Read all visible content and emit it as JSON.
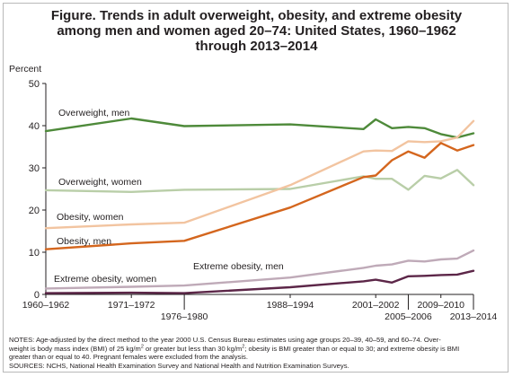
{
  "title_lines": [
    "Figure. Trends in adult overweight, obesity, and extreme obesity",
    "among men and women aged 20–74: United States, 1960–1962",
    "through 2013–2014"
  ],
  "chart_data": {
    "type": "line",
    "ylabel": "Percent",
    "xlabel": "",
    "ylim": [
      0,
      50
    ],
    "yticks": [
      0,
      10,
      20,
      30,
      40,
      50
    ],
    "grid": false,
    "x_tick_labels": [
      {
        "label": "1960–1962",
        "x": 1961,
        "row": 1
      },
      {
        "label": "1971–1972",
        "x": 1971.5,
        "row": 1
      },
      {
        "label": "1976–1980",
        "x": 1978,
        "row": 2
      },
      {
        "label": "1988–1994",
        "x": 1991,
        "row": 1
      },
      {
        "label": "2001–2002",
        "x": 2001.5,
        "row": 1
      },
      {
        "label": "2005–2006",
        "x": 2005.5,
        "row": 2
      },
      {
        "label": "2009–2010",
        "x": 2009.5,
        "row": 1
      },
      {
        "label": "2013–2014",
        "x": 2013.5,
        "row": 2
      }
    ],
    "x": [
      1961,
      1971.5,
      1978,
      1991,
      2000,
      2001.5,
      2003.5,
      2005.5,
      2007.5,
      2009.5,
      2011.5,
      2013.5
    ],
    "series": [
      {
        "name": "Overweight, men",
        "color": "#4e8a3a",
        "values": [
          38.7,
          41.7,
          39.9,
          40.3,
          39.2,
          41.5,
          39.4,
          39.7,
          39.4,
          38.0,
          37.2,
          38.2
        ]
      },
      {
        "name": "Overweight, women",
        "color": "#b9cea8",
        "values": [
          24.7,
          24.3,
          24.8,
          25.0,
          28.0,
          27.4,
          27.4,
          24.8,
          28.1,
          27.5,
          29.5,
          25.9
        ]
      },
      {
        "name": "Obesity, women",
        "color": "#f2c4a0",
        "values": [
          15.7,
          16.6,
          17.0,
          25.9,
          33.9,
          34.1,
          34.0,
          36.3,
          36.1,
          36.3,
          37.2,
          41.1
        ]
      },
      {
        "name": "Obesity, men",
        "color": "#d4661e",
        "values": [
          10.7,
          12.1,
          12.7,
          20.6,
          27.8,
          28.2,
          31.8,
          33.9,
          32.4,
          35.9,
          34.1,
          35.4
        ]
      },
      {
        "name": "Extreme obesity, women",
        "color": "#bfaab8",
        "values": [
          1.4,
          1.8,
          2.1,
          4.0,
          6.3,
          6.8,
          7.1,
          8.0,
          7.8,
          8.3,
          8.5,
          10.4
        ]
      },
      {
        "name": "Extreme obesity, men",
        "color": "#5c2648",
        "values": [
          0.3,
          0.4,
          0.3,
          1.7,
          3.1,
          3.5,
          2.8,
          4.3,
          4.4,
          4.6,
          4.7,
          5.6
        ]
      }
    ],
    "annotations": [
      "Overweight, men",
      "Overweight, women",
      "Obesity, women",
      "Obesity, men",
      "Extreme obesity, men",
      "Extreme obesity, women"
    ]
  },
  "notes": {
    "line1a": "NOTES: Age-adjusted by the direct method to the year 2000 U.S. Census Bureau estimates using age groups 20–39, 40–59, and 60–74. Over-",
    "line2a": "weight is body mass index (BMI) of 25 kg/m",
    "sup1": "2",
    "line2b": " or greater but less than 30 kg/m",
    "sup2": "2",
    "line2c": "; obesity is BMI greater than or equal to 30; and extreme obesity is BMI",
    "line3": "greater than or equal to 40. Pregnant females were excluded from the analysis.",
    "line4": "SOURCES: NCHS, National Health Examination Survey and National Health and Nutrition Examination Surveys."
  }
}
